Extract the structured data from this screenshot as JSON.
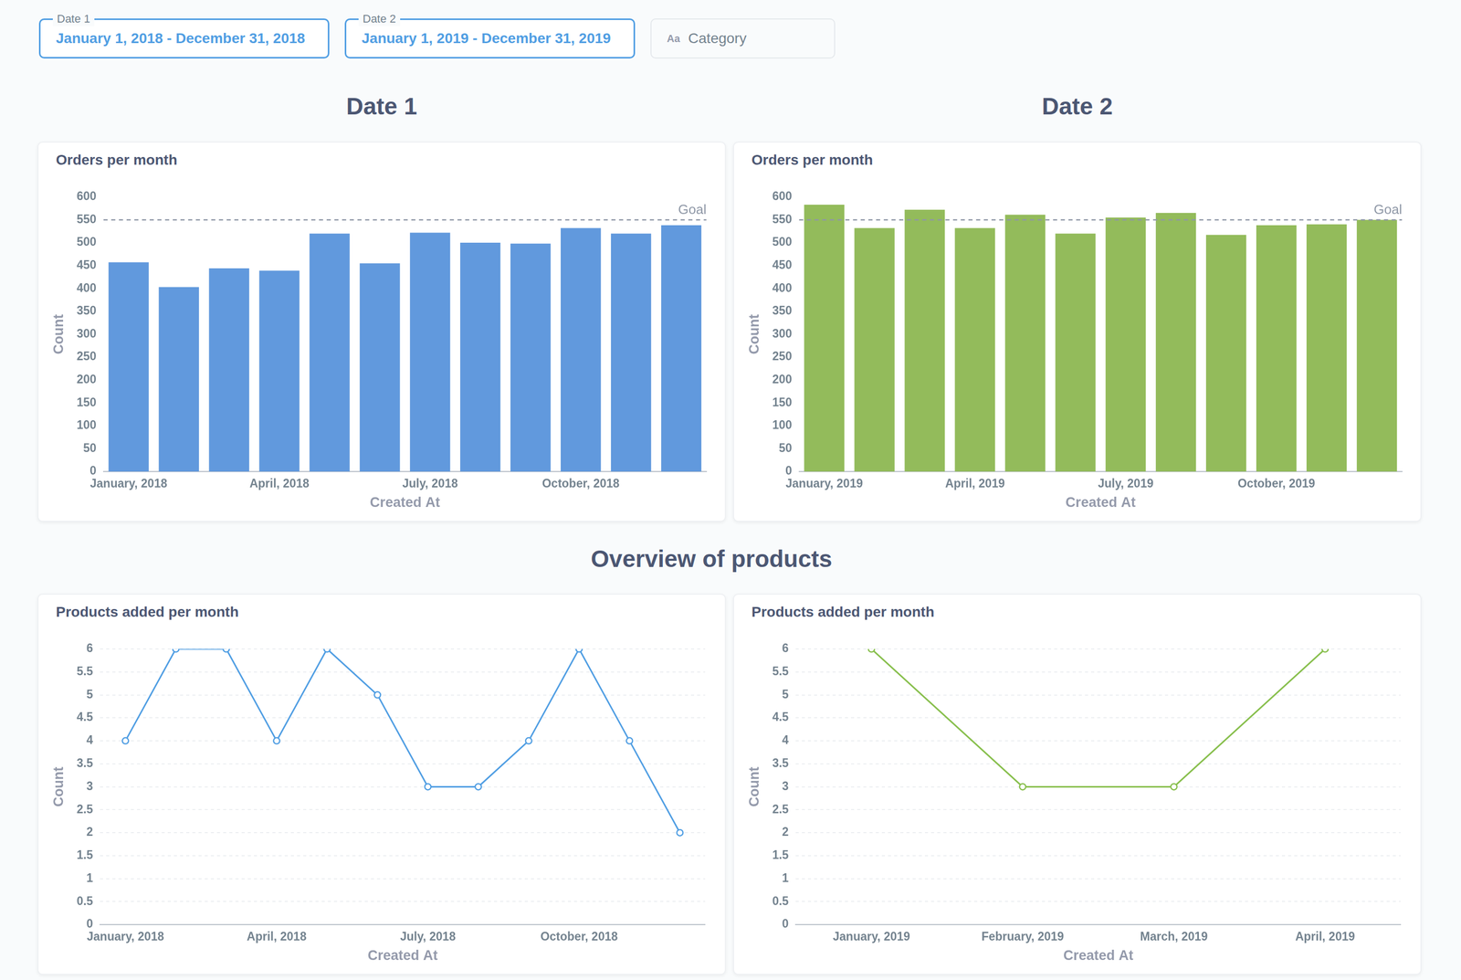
{
  "page": {
    "filters": [
      {
        "label": "Date 1",
        "value": "January 1, 2018 - December 31, 2018"
      },
      {
        "label": "Date 2",
        "value": "January 1, 2019 - December 31, 2019"
      },
      {
        "icon": "Aa",
        "placeholder": "Category"
      }
    ],
    "headings": [
      "Date 1",
      "Date 2",
      "Overview of products"
    ]
  },
  "chart_data": [
    {
      "type": "bar",
      "title": "Orders per month",
      "x_label": "Created At",
      "y_label": "Count",
      "categories": [
        "January, 2018",
        null,
        null,
        "April, 2018",
        null,
        null,
        "July, 2018",
        null,
        null,
        "October, 2018",
        null,
        null
      ],
      "values": [
        457,
        403,
        444,
        439,
        520,
        455,
        522,
        500,
        498,
        532,
        520,
        538
      ],
      "color": "#6199dd",
      "ylim": [
        0,
        600
      ],
      "yticks": [
        0,
        50,
        100,
        150,
        200,
        250,
        300,
        350,
        400,
        450,
        500,
        550,
        600
      ],
      "grid": false,
      "annotations": [
        {
          "text": "Goal",
          "y": 550
        }
      ]
    },
    {
      "type": "bar",
      "title": "Orders per month",
      "x_label": "Created At",
      "y_label": "Count",
      "categories": [
        "January, 2019",
        null,
        null,
        "April, 2019",
        null,
        null,
        "July, 2019",
        null,
        null,
        "October, 2019",
        null,
        null
      ],
      "values": [
        583,
        532,
        572,
        532,
        561,
        520,
        555,
        565,
        517,
        538,
        540,
        550
      ],
      "color": "#93bb5b",
      "ylim": [
        0,
        600
      ],
      "yticks": [
        0,
        50,
        100,
        150,
        200,
        250,
        300,
        350,
        400,
        450,
        500,
        550,
        600
      ],
      "grid": false,
      "annotations": [
        {
          "text": "Goal",
          "y": 550
        }
      ]
    },
    {
      "type": "line",
      "title": "Products added per month",
      "x_label": "Created At",
      "y_label": "Count",
      "categories": [
        "January, 2018",
        null,
        null,
        "April, 2018",
        null,
        null,
        "July, 2018",
        null,
        null,
        "October, 2018",
        null,
        null
      ],
      "values": [
        4,
        6,
        6,
        4,
        6,
        5,
        3,
        3,
        4,
        6,
        4,
        2
      ],
      "color": "#509ee3",
      "marker": "circle",
      "ylim": [
        0,
        6
      ],
      "yticks": [
        0,
        0.5,
        1,
        1.5,
        2,
        2.5,
        3,
        3.5,
        4,
        4.5,
        5,
        5.5,
        6
      ],
      "grid": true
    },
    {
      "type": "line",
      "title": "Products added per month",
      "x_label": "Created At",
      "y_label": "Count",
      "categories": [
        "January, 2019",
        "February, 2019",
        "March, 2019",
        "April, 2019"
      ],
      "values": [
        6,
        3,
        3,
        6
      ],
      "color": "#88bf4d",
      "marker": "circle",
      "ylim": [
        0,
        6
      ],
      "yticks": [
        0,
        0.5,
        1,
        1.5,
        2,
        2.5,
        3,
        3.5,
        4,
        4.5,
        5,
        5.5,
        6
      ],
      "grid": true
    }
  ]
}
